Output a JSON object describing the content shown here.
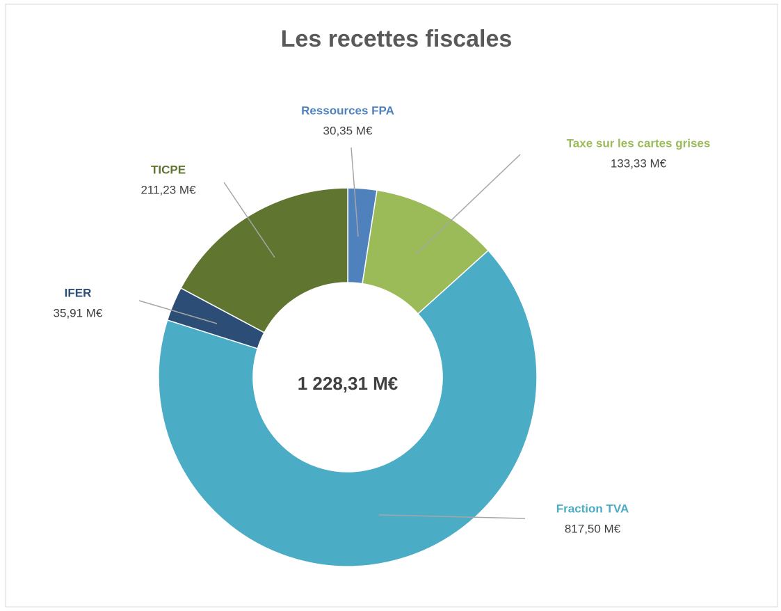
{
  "chart_data": {
    "type": "donut",
    "title": "Les recettes fiscales",
    "center_label": "1 228,31 M€",
    "categories": [
      "Ressources FPA",
      "Taxe sur les cartes grises",
      "Fraction TVA",
      "IFER",
      "TICPE"
    ],
    "values": [
      30.35,
      133.33,
      817.5,
      35.91,
      211.23
    ],
    "value_labels": [
      "30,35 M€",
      "133,33 M€",
      "817,50 M€",
      "35,91 M€",
      "211,23 M€"
    ],
    "colors": [
      "#4f81bd",
      "#9bbb59",
      "#4bacc6",
      "#2c4d75",
      "#5f7530"
    ]
  }
}
